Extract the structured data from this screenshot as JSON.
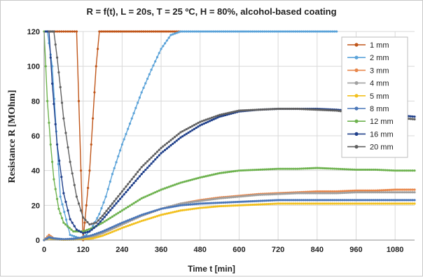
{
  "chart_data": {
    "type": "line",
    "title": "R = f(t), L = 20s, T = 25 ºC, H = 80%, alcohol-based coating",
    "xlabel": "Time t [min]",
    "ylabel": "Resistance R [MOhm]",
    "xlim": [
      0,
      1140
    ],
    "ylim": [
      0,
      120
    ],
    "xticks": [
      0,
      120,
      240,
      360,
      480,
      600,
      720,
      840,
      960,
      1080
    ],
    "yticks": [
      0,
      20,
      40,
      60,
      80,
      100,
      120
    ],
    "grid": true,
    "legend_position": "top-right",
    "series": [
      {
        "name": "1 mm",
        "color": "#c0561a",
        "x": [
          10,
          20,
          40,
          60,
          80,
          100,
          120,
          130,
          140,
          150,
          160,
          170,
          200,
          240,
          300,
          360,
          420
        ],
        "y": [
          120,
          120,
          120,
          120,
          120,
          120,
          0,
          20,
          40,
          70,
          100,
          120,
          120,
          120,
          120,
          120,
          120
        ]
      },
      {
        "name": "2 mm",
        "color": "#5ba3d9",
        "x": [
          10,
          25,
          50,
          80,
          110,
          130,
          150,
          170,
          190,
          210,
          240,
          270,
          300,
          330,
          360,
          390,
          420,
          480,
          600,
          720,
          840,
          900
        ],
        "y": [
          120,
          100,
          25,
          3,
          1,
          3,
          8,
          15,
          25,
          38,
          55,
          70,
          85,
          98,
          110,
          118,
          120,
          120,
          120,
          120,
          120,
          120
        ]
      },
      {
        "name": "3 mm",
        "color": "#e8864a",
        "x": [
          0,
          15,
          30,
          60,
          90,
          120,
          150,
          180,
          240,
          300,
          360,
          420,
          480,
          540,
          600,
          660,
          720,
          780,
          840,
          900,
          960,
          1020,
          1080,
          1140
        ],
        "y": [
          0,
          3,
          1,
          0.3,
          0.5,
          1,
          2,
          4,
          9,
          14,
          18,
          21,
          23,
          24.5,
          25.5,
          26.5,
          27,
          27.5,
          28,
          28,
          28.5,
          28.5,
          29,
          29
        ]
      },
      {
        "name": "4 mm",
        "color": "#a0a0a0",
        "x": [
          0,
          15,
          30,
          60,
          90,
          120,
          150,
          180,
          240,
          300,
          360,
          420,
          480,
          540,
          600,
          660,
          720,
          780,
          840,
          900,
          960,
          1020,
          1080,
          1140
        ],
        "y": [
          0,
          2,
          1,
          0.3,
          0.5,
          1,
          2,
          4,
          9,
          14,
          18,
          21,
          22.5,
          24,
          25,
          26,
          26.5,
          27,
          27,
          27,
          27.5,
          27.5,
          27.5,
          27.5
        ]
      },
      {
        "name": "5 mm",
        "color": "#f2c01e",
        "x": [
          0,
          15,
          30,
          60,
          90,
          120,
          150,
          180,
          240,
          300,
          360,
          420,
          480,
          540,
          600,
          660,
          720,
          780,
          840,
          900,
          960,
          1020,
          1080,
          1140
        ],
        "y": [
          0,
          1,
          0.5,
          0.2,
          0.3,
          0.5,
          1,
          2.5,
          7,
          11,
          14.5,
          17,
          18.5,
          19.5,
          20,
          20.5,
          21,
          21,
          21,
          21,
          21,
          21,
          21,
          21
        ]
      },
      {
        "name": "8 mm",
        "color": "#4a76b8",
        "x": [
          0,
          15,
          30,
          60,
          90,
          120,
          150,
          180,
          240,
          300,
          360,
          420,
          480,
          540,
          600,
          660,
          720,
          780,
          840,
          900,
          960,
          1020,
          1080,
          1140
        ],
        "y": [
          0,
          1.5,
          1,
          0.5,
          0.8,
          1.5,
          3,
          5,
          10,
          14.5,
          18,
          20,
          21,
          21.5,
          22,
          22.5,
          23,
          23,
          23,
          23,
          23,
          23,
          23,
          23
        ]
      },
      {
        "name": "12 mm",
        "color": "#6db24e",
        "x": [
          0,
          10,
          20,
          30,
          45,
          60,
          90,
          120,
          150,
          180,
          240,
          300,
          360,
          420,
          480,
          540,
          600,
          660,
          720,
          780,
          840,
          900,
          960,
          1020,
          1080,
          1140
        ],
        "y": [
          120,
          80,
          55,
          35,
          18,
          10,
          5,
          5,
          7,
          10,
          17,
          24,
          29,
          33,
          36,
          38.5,
          40,
          40.5,
          41,
          41,
          41.5,
          41,
          40.5,
          40.5,
          40,
          40
        ]
      },
      {
        "name": "16 mm",
        "color": "#1f3f8a",
        "x": [
          5,
          15,
          25,
          40,
          60,
          80,
          100,
          120,
          140,
          160,
          180,
          240,
          300,
          360,
          420,
          480,
          540,
          600,
          660,
          720,
          780,
          840,
          900,
          960,
          1020,
          1080,
          1140
        ],
        "y": [
          120,
          120,
          90,
          55,
          27,
          12,
          6,
          4,
          5,
          8,
          12,
          25,
          38,
          50,
          59,
          66,
          71,
          74,
          75,
          75.5,
          75.5,
          75.5,
          75,
          74,
          73,
          72,
          71
        ]
      },
      {
        "name": "20 mm",
        "color": "#606060",
        "x": [
          15,
          30,
          40,
          50,
          60,
          80,
          100,
          120,
          140,
          160,
          180,
          240,
          300,
          360,
          420,
          480,
          540,
          600,
          660,
          720,
          780,
          840,
          900,
          960,
          1020,
          1080,
          1140
        ],
        "y": [
          120,
          120,
          105,
          88,
          70,
          45,
          25,
          13,
          9,
          10,
          14,
          28,
          42,
          53,
          62,
          68,
          72,
          74.5,
          75,
          75.5,
          75.5,
          75,
          74.5,
          73,
          72,
          70.5,
          69.5
        ]
      }
    ]
  }
}
